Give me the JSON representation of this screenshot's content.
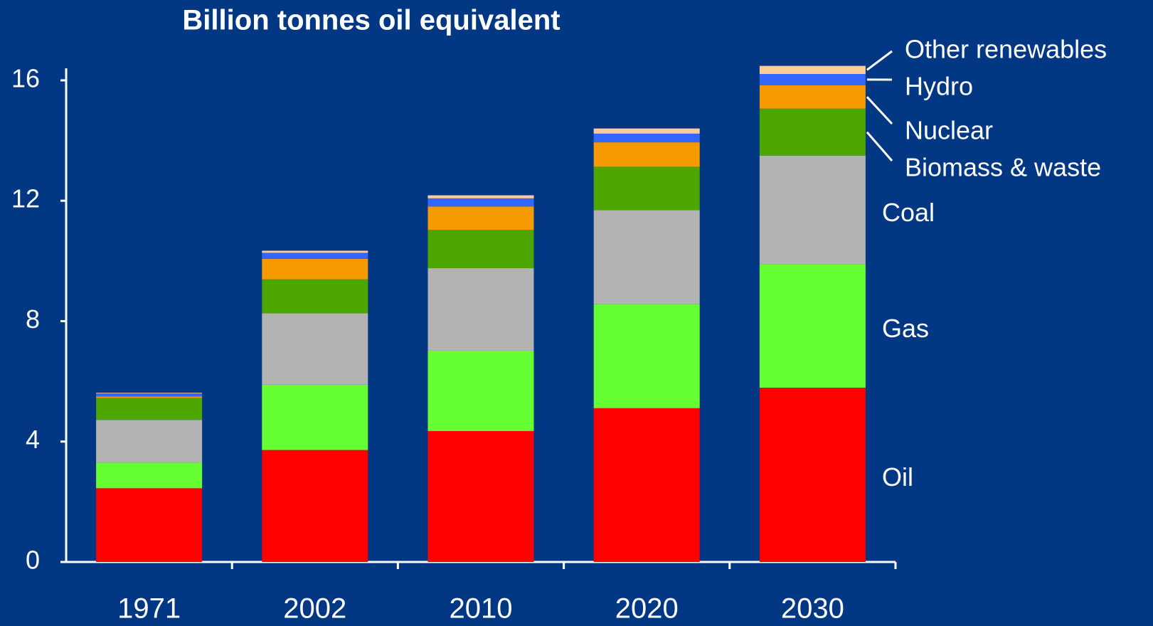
{
  "chart_data": {
    "type": "stacked_bar",
    "title": "Billion tonnes oil equivalent",
    "categories": [
      "1971",
      "2002",
      "2010",
      "2020",
      "2030"
    ],
    "series": [
      {
        "name": "Oil",
        "color": "#ff0000",
        "values": [
          2.45,
          3.72,
          4.35,
          5.11,
          5.79
        ]
      },
      {
        "name": "Gas",
        "color": "#66ff33",
        "values": [
          0.85,
          2.17,
          2.67,
          3.45,
          4.09
        ]
      },
      {
        "name": "Coal",
        "color": "#b3b3b3",
        "values": [
          1.42,
          2.37,
          2.74,
          3.13,
          3.62
        ]
      },
      {
        "name": "Biomass & waste",
        "color": "#4da600",
        "values": [
          0.73,
          1.13,
          1.27,
          1.44,
          1.56
        ]
      },
      {
        "name": "Nuclear",
        "color": "#f59a00",
        "values": [
          0.05,
          0.68,
          0.78,
          0.81,
          0.78
        ]
      },
      {
        "name": "Hydro",
        "color": "#3366ff",
        "values": [
          0.1,
          0.2,
          0.27,
          0.29,
          0.37
        ]
      },
      {
        "name": "Other renewables",
        "color": "#ffcc99",
        "values": [
          0.02,
          0.07,
          0.1,
          0.17,
          0.27
        ]
      }
    ],
    "ylim": [
      0,
      16.4
    ],
    "yticks": [
      0,
      4,
      8,
      12,
      16
    ]
  }
}
